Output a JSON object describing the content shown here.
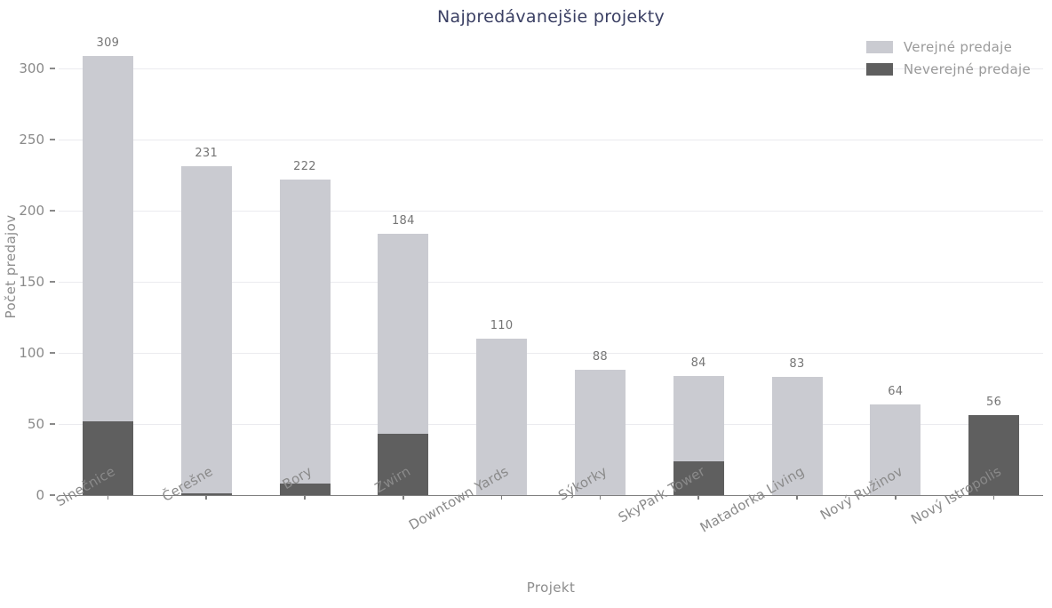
{
  "chart_data": {
    "type": "bar",
    "stacked": true,
    "title": "Najpredávanejšie projekty",
    "xlabel": "Projekt",
    "ylabel": "Počet predajov",
    "categories": [
      "Slnečnice",
      "Čerešne",
      "Bory",
      "Zwirn",
      "Downtown Yards",
      "Sýkorky",
      "SkyPark Tower",
      "Matadorka Living",
      "Nový Ružinov",
      "Nový Istropolis"
    ],
    "series": [
      {
        "name": "Verejné predaje",
        "color": "#cacbd1",
        "values": [
          257,
          230,
          214,
          141,
          110,
          88,
          60,
          83,
          64,
          0
        ]
      },
      {
        "name": "Neverejné predaje",
        "color": "#5f5f5f",
        "values": [
          52,
          1,
          8,
          43,
          0,
          0,
          24,
          0,
          0,
          56
        ]
      }
    ],
    "stack_order_bottom_to_top": [
      "Neverejné predaje",
      "Verejné predaje"
    ],
    "totals": [
      309,
      231,
      222,
      184,
      110,
      88,
      84,
      83,
      64,
      56
    ],
    "ylim": [
      0,
      320
    ],
    "yticks": [
      0,
      50,
      100,
      150,
      200,
      250,
      300
    ],
    "grid": true,
    "legend_position": "top-right"
  },
  "colors": {
    "background": "#ffffff",
    "title_text": "#3a3f63",
    "tick_text": "#8a8a8a",
    "value_label_text": "#757575",
    "legend_text": "#9a9a9a",
    "gridline": "#ebebef",
    "axis_line": "#7f7f7f",
    "bar_light": "#cacbd1",
    "bar_dark": "#5f5f5f"
  }
}
